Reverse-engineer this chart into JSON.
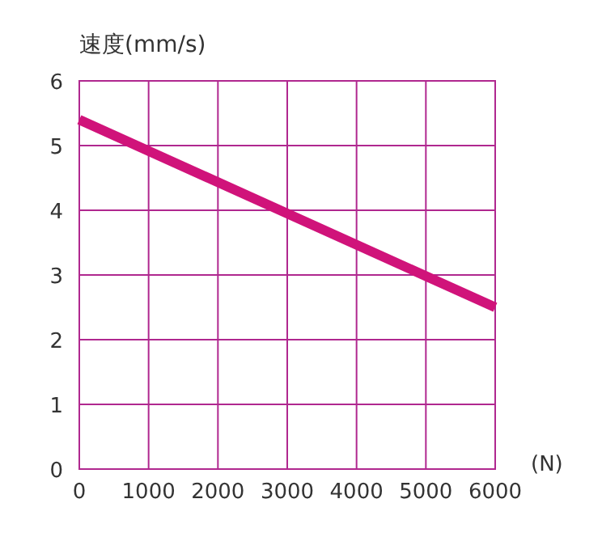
{
  "chart_data": {
    "type": "line",
    "ylabel": "速度(mm/s)",
    "xlabel": "(N)",
    "x": [
      0,
      6000
    ],
    "series": [
      {
        "color": "#d0137a",
        "values": [
          5.4,
          2.5
        ]
      }
    ],
    "xlim": [
      0,
      6000
    ],
    "xticks": [
      0,
      1000,
      2000,
      3000,
      4000,
      5000,
      6000
    ],
    "ylim": [
      0,
      6
    ],
    "yticks": [
      0,
      1,
      2,
      3,
      4,
      5,
      6
    ],
    "grid": true,
    "marker": "none",
    "line_style": "solid"
  }
}
